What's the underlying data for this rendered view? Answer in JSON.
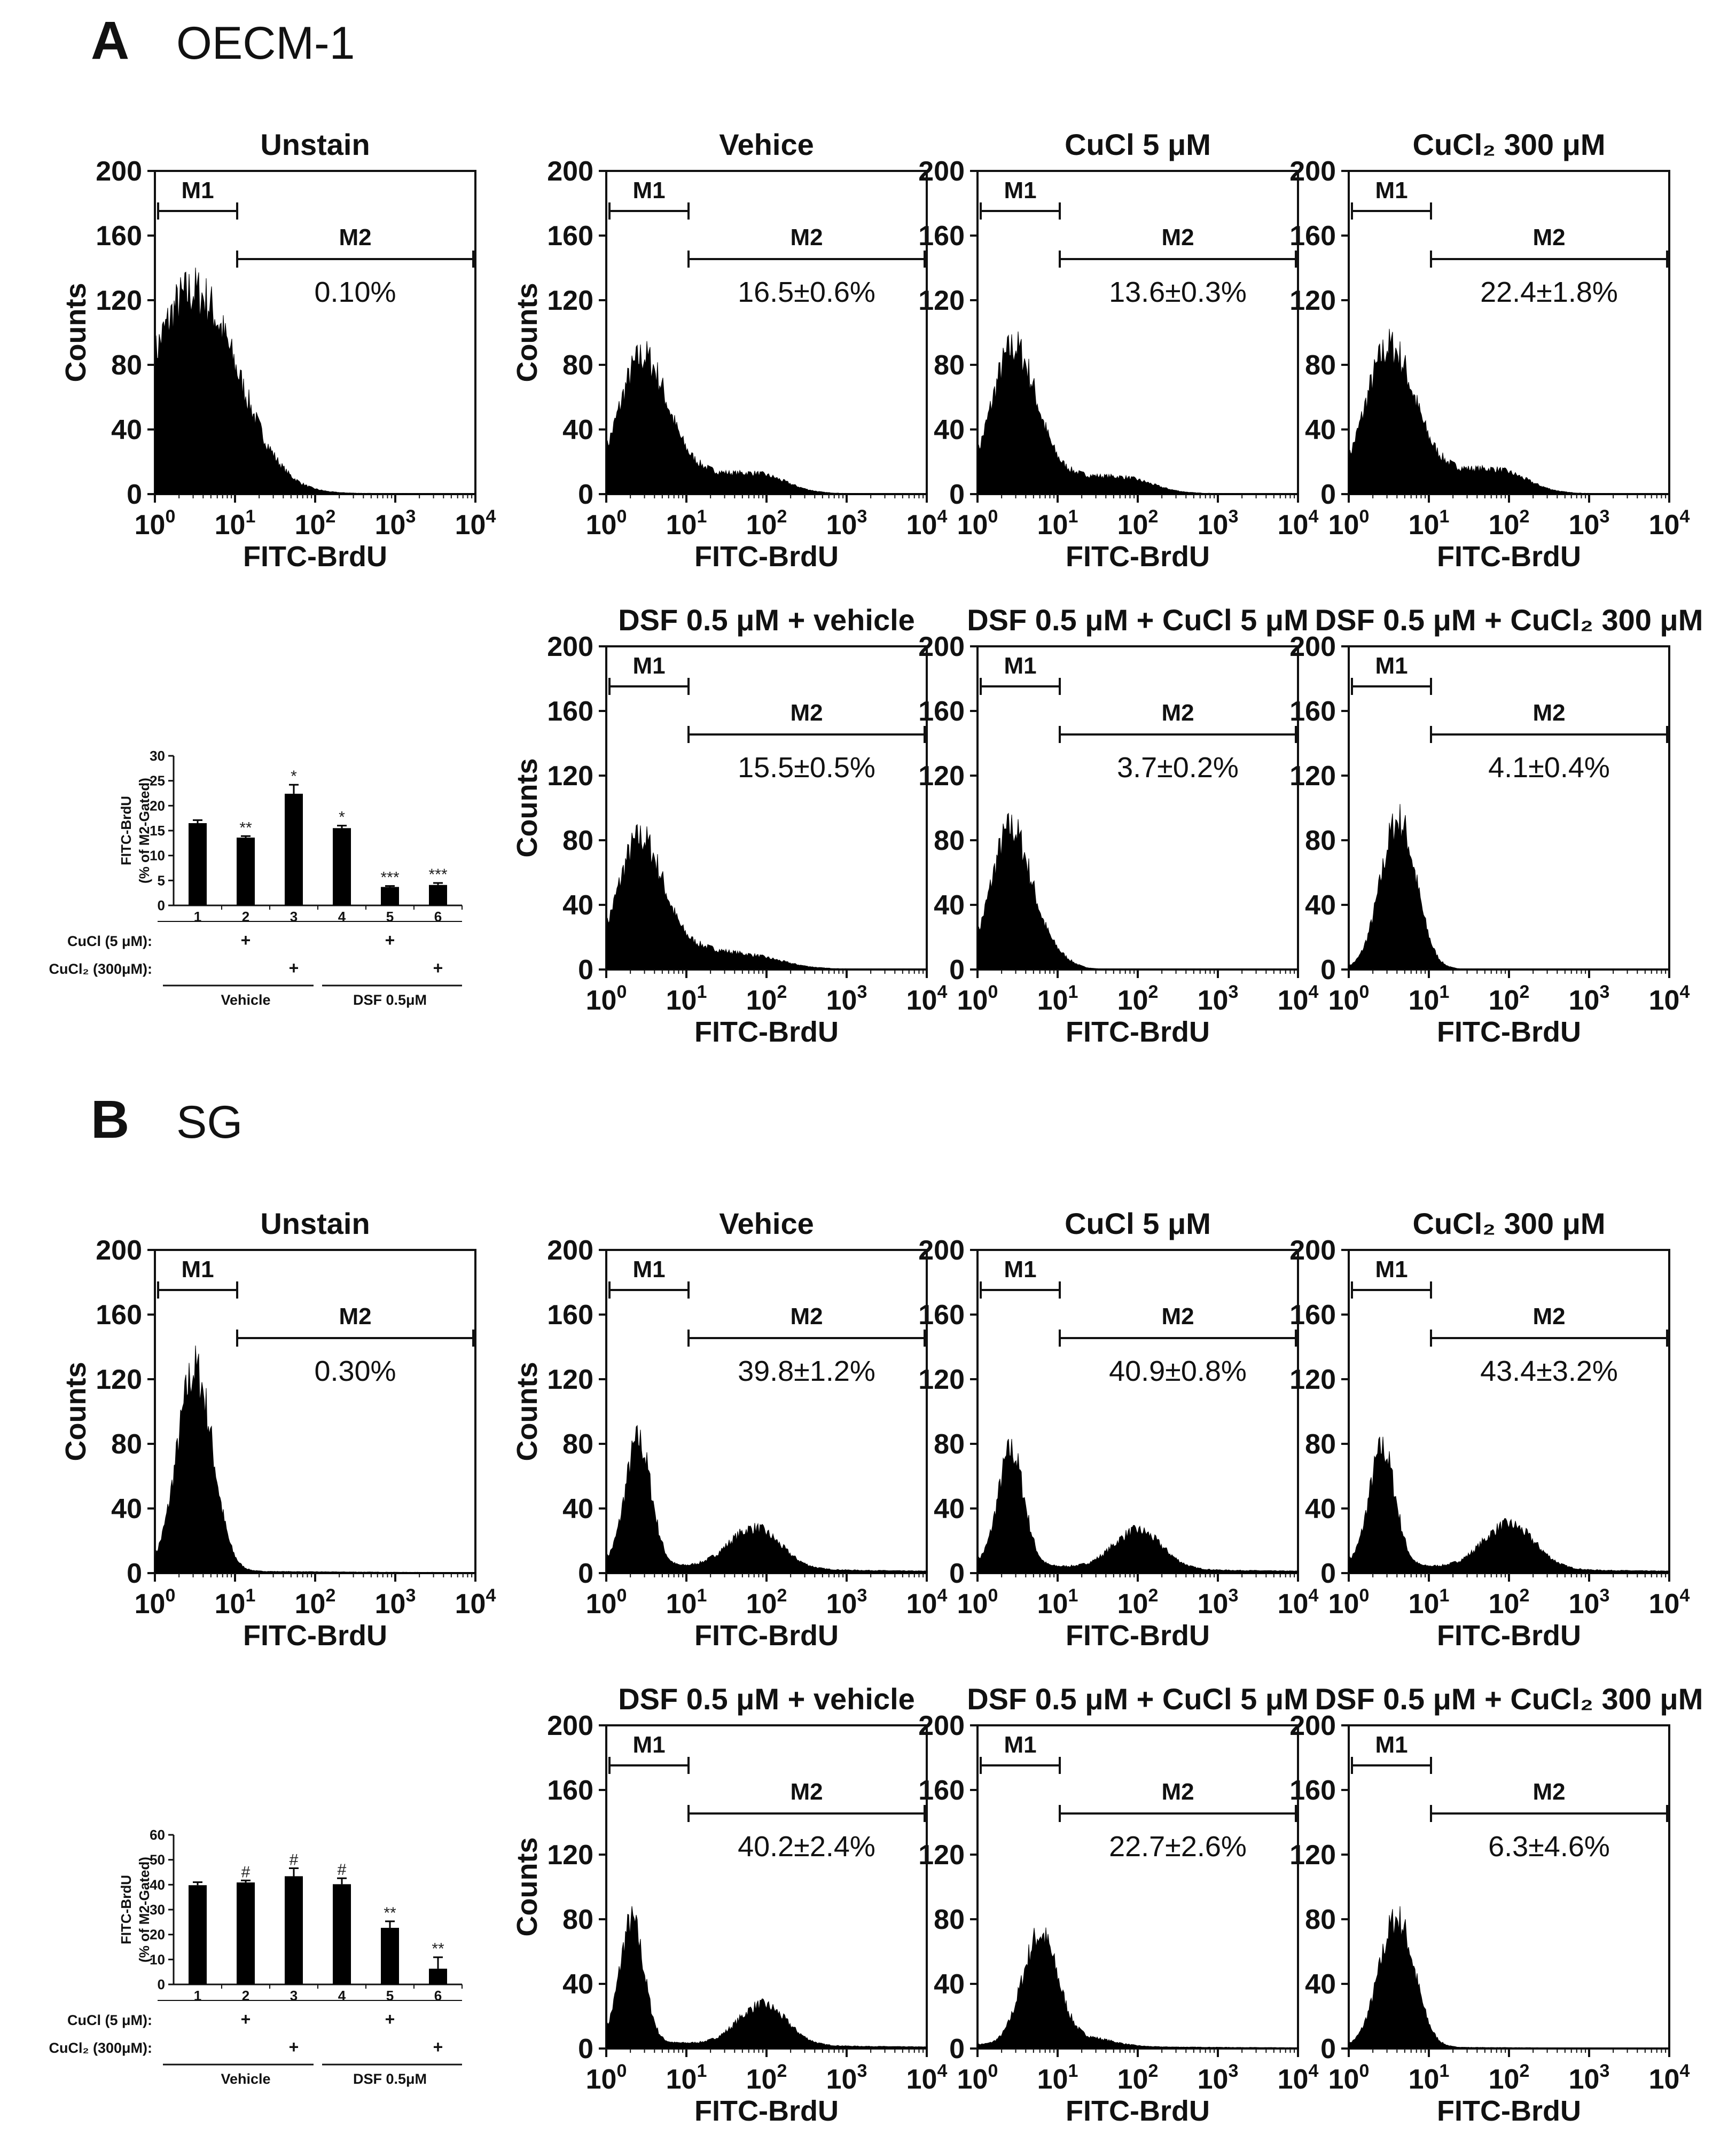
{
  "panels": [
    {
      "id": "A",
      "letter": "A",
      "name": "OECM-1",
      "histograms": [
        {
          "title": "Unstain",
          "pct": "0.10%",
          "peaks": [
            [
              0.48,
              0.55,
              1.0
            ]
          ],
          "floor": 0.01
        },
        {
          "title": "Vehice",
          "pct": "16.5±0.6%",
          "peaks": [
            [
              0.45,
              0.3,
              0.66
            ],
            [
              1.9,
              0.35,
              0.09
            ],
            [
              1.1,
              0.35,
              0.1
            ]
          ],
          "floor": 0.01
        },
        {
          "title": "CuCl 5 μM",
          "pct": "13.6±0.3%",
          "peaks": [
            [
              0.45,
              0.28,
              0.71
            ],
            [
              1.85,
              0.35,
              0.07
            ],
            [
              1.1,
              0.35,
              0.08
            ]
          ],
          "floor": 0.01
        },
        {
          "title": "CuCl₂ 300 μM",
          "pct": "22.4±1.8%",
          "peaks": [
            [
              0.5,
              0.3,
              0.69
            ],
            [
              1.9,
              0.35,
              0.1
            ],
            [
              1.1,
              0.4,
              0.11
            ]
          ],
          "floor": 0.01
        },
        {
          "title": "DSF 0.5 μM + vehicle",
          "pct": "15.5±0.5%",
          "peaks": [
            [
              0.42,
              0.28,
              0.63
            ],
            [
              1.8,
              0.4,
              0.06
            ],
            [
              1.05,
              0.35,
              0.09
            ]
          ],
          "floor": 0.01
        },
        {
          "title": "DSF 0.5 μM + CuCl 5 μM",
          "pct": "3.7±0.2%",
          "peaks": [
            [
              0.42,
              0.25,
              0.7
            ],
            [
              0.95,
              0.2,
              0.06
            ]
          ],
          "floor": 0.005
        },
        {
          "title": "DSF 0.5 μM + CuCl₂ 300 μM",
          "pct": "4.1±0.4%",
          "peaks": [
            [
              0.62,
              0.22,
              0.74
            ]
          ],
          "floor": 0.005
        }
      ],
      "bar": {
        "ylabel1": "FITC-BrdU",
        "ylabel2": "(% of M2-Gated)",
        "yticks": [
          "0",
          "5",
          "10",
          "15",
          "20",
          "25",
          "30"
        ],
        "ymax": 30,
        "categories": [
          "1",
          "2",
          "3",
          "4",
          "5",
          "6"
        ],
        "values": [
          16.5,
          13.6,
          22.4,
          15.5,
          3.7,
          4.1
        ],
        "errors": [
          0.6,
          0.3,
          1.8,
          0.5,
          0.2,
          0.4
        ],
        "sig": [
          "",
          "**",
          "*",
          "*",
          "***",
          "***"
        ],
        "row1_label": "CuCl (5 μM):",
        "row2_label": "CuCl₂ (300μM):",
        "row1_signs": [
          "",
          "+",
          "",
          "",
          "+",
          ""
        ],
        "row2_signs": [
          "",
          "",
          "+",
          "",
          "",
          "+"
        ],
        "group1": "Vehicle",
        "group2": "DSF 0.5μM"
      }
    },
    {
      "id": "B",
      "letter": "B",
      "name": "SG",
      "histograms": [
        {
          "title": "Unstain",
          "pct": "0.30%",
          "peaks": [
            [
              0.5,
              0.22,
              1.0
            ]
          ],
          "floor": 0.015
        },
        {
          "title": "Vehice",
          "pct": "39.8±1.2%",
          "peaks": [
            [
              0.4,
              0.16,
              0.62
            ],
            [
              1.85,
              0.32,
              0.2
            ]
          ],
          "floor": 0.05
        },
        {
          "title": "CuCl 5 μM",
          "pct": "40.9±0.8%",
          "peaks": [
            [
              0.42,
              0.16,
              0.57
            ],
            [
              2.0,
              0.3,
              0.19
            ]
          ],
          "floor": 0.05
        },
        {
          "title": "CuCl₂ 300 μM",
          "pct": "43.4±3.2%",
          "peaks": [
            [
              0.42,
              0.16,
              0.58
            ],
            [
              2.0,
              0.32,
              0.22
            ]
          ],
          "floor": 0.05
        },
        {
          "title": "DSF 0.5 μM + vehicle",
          "pct": "40.2±2.4%",
          "peaks": [
            [
              0.32,
              0.15,
              0.6
            ],
            [
              1.95,
              0.3,
              0.2
            ]
          ],
          "floor": 0.04
        },
        {
          "title": "DSF 0.5 μM + CuCl 5 μM",
          "pct": "22.7±2.6%",
          "peaks": [
            [
              0.78,
              0.22,
              0.55
            ],
            [
              1.4,
              0.3,
              0.04
            ]
          ],
          "floor": 0.02
        },
        {
          "title": "DSF 0.5 μM + CuCl₂ 300 μM",
          "pct": "6.3±4.6%",
          "peaks": [
            [
              0.6,
              0.22,
              0.64
            ]
          ],
          "floor": 0.01
        }
      ],
      "bar": {
        "ylabel1": "FITC-BrdU",
        "ylabel2": "(% of M2-Gated)",
        "yticks": [
          "0",
          "10",
          "20",
          "30",
          "40",
          "50",
          "60"
        ],
        "ymax": 60,
        "categories": [
          "1",
          "2",
          "3",
          "4",
          "5",
          "6"
        ],
        "values": [
          39.8,
          40.9,
          43.4,
          40.2,
          22.7,
          6.3
        ],
        "errors": [
          1.2,
          0.8,
          3.2,
          2.4,
          2.6,
          4.6
        ],
        "sig": [
          "",
          "#",
          "#",
          "#",
          "**",
          "**"
        ],
        "row1_label": "CuCl (5 μM):",
        "row2_label": "CuCl₂ (300μM):",
        "row1_signs": [
          "",
          "+",
          "",
          "",
          "+",
          ""
        ],
        "row2_signs": [
          "",
          "",
          "+",
          "",
          "",
          "+"
        ],
        "group1": "Vehicle",
        "group2": "DSF 0.5μM"
      }
    }
  ],
  "histogram_common": {
    "ylabel": "Counts",
    "xlabel": "FITC-BrdU",
    "yticks": [
      "0",
      "40",
      "80",
      "120",
      "160",
      "200"
    ],
    "ymax": 200,
    "xdecades": [
      "0",
      "1",
      "2",
      "3",
      "4"
    ],
    "xbase": "10",
    "gate1": "M1",
    "gate2": "M2"
  },
  "chart_data": [
    {
      "type": "bar",
      "panel": "A",
      "categories": [
        "1",
        "2",
        "3",
        "4",
        "5",
        "6"
      ],
      "values": [
        16.5,
        13.6,
        22.4,
        15.5,
        3.7,
        4.1
      ],
      "errors": [
        0.6,
        0.3,
        1.8,
        0.5,
        0.2,
        0.4
      ],
      "ylabel": "FITC-BrdU (% of M2-Gated)",
      "ylim": [
        0,
        30
      ]
    },
    {
      "type": "bar",
      "panel": "B",
      "categories": [
        "1",
        "2",
        "3",
        "4",
        "5",
        "6"
      ],
      "values": [
        39.8,
        40.9,
        43.4,
        40.2,
        22.7,
        6.3
      ],
      "errors": [
        1.2,
        0.8,
        3.2,
        2.4,
        2.6,
        4.6
      ],
      "ylabel": "FITC-BrdU (% of M2-Gated)",
      "ylim": [
        0,
        60
      ]
    }
  ]
}
